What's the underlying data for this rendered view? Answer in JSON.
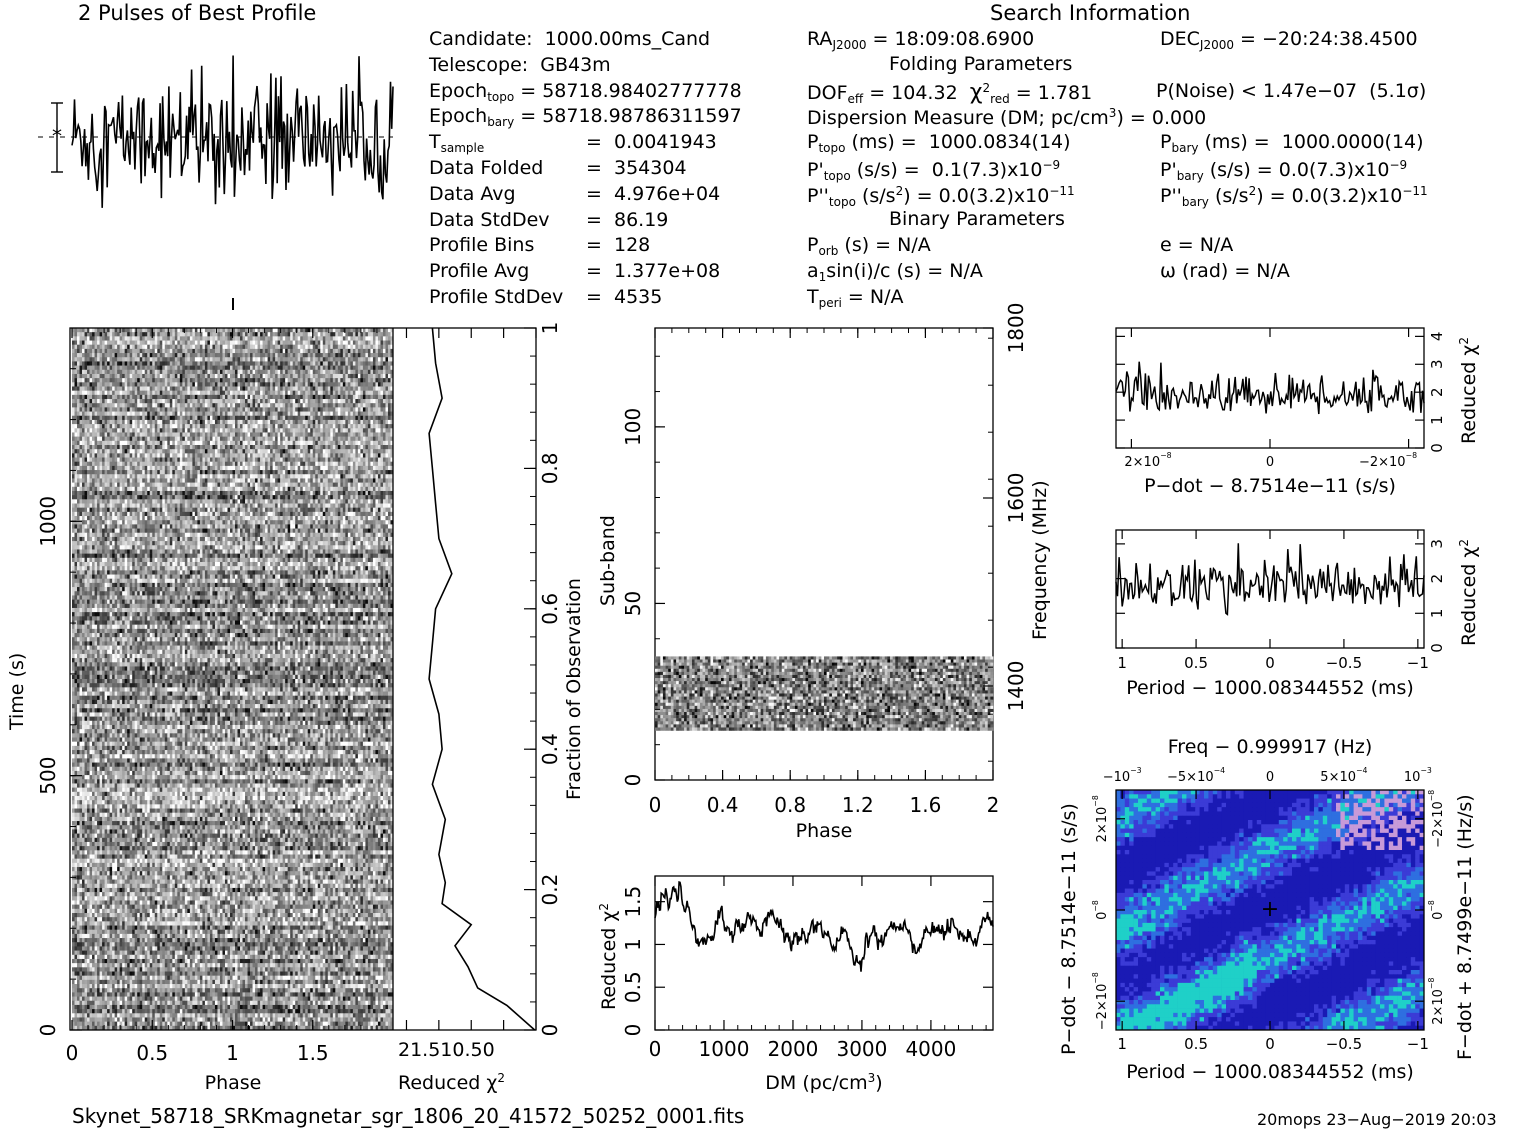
{
  "header": {
    "profile_title": "2 Pulses of Best Profile",
    "search_title": "Search Information",
    "folding_title": "Folding Parameters",
    "binary_title": "Binary Parameters"
  },
  "info": {
    "candidate": "Candidate:  1000.00ms_Cand",
    "telescope": "Telescope:  GB43m",
    "epoch_topo_label": "Epoch",
    "epoch_topo_sub": "topo",
    "epoch_topo_val": " = 58718.98402777778",
    "epoch_bary_label": "Epoch",
    "epoch_bary_sub": "bary",
    "epoch_bary_val": " = 58718.98786311597",
    "tsample_label": "T",
    "tsample_sub": "sample",
    "tsample_val": "=  0.0041943",
    "data_folded_label": "Data Folded",
    "data_folded_val": "=  354304",
    "data_avg_label": "Data Avg",
    "data_avg_val": "=  4.976e+04",
    "data_std_label": "Data StdDev",
    "data_std_val": "=  86.19",
    "prof_bins_label": "Profile Bins",
    "prof_bins_val": "=  128",
    "prof_avg_label": "Profile Avg",
    "prof_avg_val": "=  1.377e+08",
    "prof_std_label": "Profile StdDev",
    "prof_std_val": "=  4535"
  },
  "search": {
    "ra_label": "RA",
    "ra_sub": "J2000",
    "ra_val": " = 18:09:08.6900",
    "dec_label": "DEC",
    "dec_sub": "J2000",
    "dec_val": " = −20:24:38.4500",
    "dof_label": "DOF",
    "dof_sub": "eff",
    "dof_val": " = 104.32  ",
    "chi_sym": "χ",
    "chi_sup": "2",
    "chi_sub": "red",
    "chi_val": " = 1.781",
    "pnoise": "P(Noise) < 1.47e−07  (5.1σ)",
    "dm_line": "Dispersion Measure (DM; pc/cm",
    "dm_sup": "3",
    "dm_val": ") = 0.000",
    "ptopo_label": "P",
    "ptopo_sub": "topo",
    "ptopo_val": " (ms) =  1000.0834(14)",
    "pbary_label": "P",
    "pbary_sub": "bary",
    "pbary_val": " (ms) =  1000.0000(14)",
    "pdtopo_label": "P'",
    "pdtopo_sub": "topo",
    "pdtopo_val": " (s/s) =  0.1(7.3)x10",
    "pdtopo_exp": "−9",
    "pdbary_label": "P'",
    "pdbary_sub": "bary",
    "pdbary_val": " (s/s) = 0.0(7.3)x10",
    "pdbary_exp": "−9",
    "pddtopo_label": "P''",
    "pddtopo_sub": "topo",
    "pddtopo_val": " (s/s",
    "pddtopo_sup": "2",
    "pddtopo_val2": ") = 0.0(3.2)x10",
    "pddtopo_exp": "−11",
    "pddbary_label": "P''",
    "pddbary_sub": "bary",
    "pddbary_val": " (s/s",
    "pddbary_sup": "2",
    "pddbary_val2": ") = 0.0(3.2)x10",
    "pddbary_exp": "−11",
    "porb_label": "P",
    "porb_sub": "orb",
    "porb_val": " (s) = N/A",
    "e_line": "e = N/A",
    "a1_label": "a",
    "a1_sub": "1",
    "a1_val": "sin(i)/c (s) = N/A",
    "omega_line": "ω (rad) = N/A",
    "tperi_label": "T",
    "tperi_sub": "peri",
    "tperi_val": " = N/A"
  },
  "footer": {
    "filename": "Skynet_58718_SRKmagnetar_sgr_1806_20_41572_50252_0001.fits",
    "stamp": "20mops 23−Aug−2019 20:03"
  },
  "chart_data": [
    {
      "type": "line",
      "title": "2 Pulses of Best Profile",
      "x_range": [
        0,
        2
      ],
      "description_values": "noisy profile, no clear pulse",
      "series": [
        {
          "samples": 256
        }
      ]
    },
    {
      "type": "heatmap",
      "xlabel": "Phase",
      "ylabel": "Time (s)",
      "xlim": [
        0,
        2
      ],
      "ylim": [
        0,
        1380
      ],
      "x_ticks": [
        "0",
        "0.5",
        "1",
        "1.5"
      ],
      "y_ticks": [
        "0",
        "500",
        "1000"
      ]
    },
    {
      "type": "line",
      "xlabel": "Reduced χ",
      "xlabel_sup": "2",
      "ylabel": "Fraction of Observation",
      "x_ticks": [
        "2",
        "1.5",
        "1",
        "0.5",
        "0"
      ],
      "x_tick_label_joined": "21.510.50",
      "y_ticks": [
        "0",
        "0.2",
        "0.4",
        "0.6",
        "0.8",
        "1"
      ],
      "x": [
        0.035,
        0.06,
        0.09,
        0.12,
        0.15,
        0.18,
        0.21,
        0.25,
        0.3,
        0.35,
        0.4,
        0.45,
        0.5,
        0.55,
        0.6,
        0.65,
        0.7,
        0.75,
        0.8,
        0.85,
        0.9,
        0.95,
        1.0
      ],
      "y": [
        0.45,
        0.9,
        1.05,
        1.25,
        1.0,
        1.45,
        1.4,
        1.5,
        1.4,
        1.6,
        1.45,
        1.5,
        1.65,
        1.6,
        1.55,
        1.3,
        1.5,
        1.55,
        1.6,
        1.65,
        1.45,
        1.55,
        1.6
      ]
    },
    {
      "type": "heatmap",
      "xlabel": "Phase",
      "ylabel": "Sub-band",
      "y2label": "Frequency (MHz)",
      "xlim": [
        0,
        2
      ],
      "ylim": [
        0,
        128
      ],
      "x_ticks": [
        "0",
        "0.4",
        "0.8",
        "1.2",
        "1.6",
        "2"
      ],
      "y_ticks": [
        "0",
        "50",
        "100"
      ],
      "y2_ticks": [
        "1400",
        "1600",
        "1800"
      ],
      "band_rows": [
        14,
        35
      ]
    },
    {
      "type": "line",
      "xlabel": "DM (pc/cm",
      "xlabel_sup": "3",
      "xlabel_end": ")",
      "ylabel": "Reduced χ",
      "ylabel_sup": "2",
      "xlim": [
        0,
        4900
      ],
      "ylim": [
        0,
        1.8
      ],
      "x_ticks": [
        "0",
        "1000",
        "2000",
        "3000",
        "4000"
      ],
      "y_ticks": [
        "0",
        "0.5",
        "1",
        "1.5"
      ],
      "mean_level": 1.15
    },
    {
      "type": "line",
      "xlabel": "P−dot − 8.7514e−11 (s/s)",
      "ylabel": "Reduced χ",
      "ylabel_sup": "2",
      "x_ticks": [
        "2×10",
        "0",
        "−2×10"
      ],
      "x_tick_exp": "−8",
      "y_ticks": [
        "0",
        "1",
        "2",
        "3",
        "4"
      ],
      "mean_level": 1.9
    },
    {
      "type": "line",
      "xlabel": "Period − 1000.08344552 (ms)",
      "ylabel": "Reduced χ",
      "ylabel_sup": "2",
      "x_ticks": [
        "1",
        "0.5",
        "0",
        "−0.5",
        "−1"
      ],
      "y_ticks": [
        "0",
        "1",
        "2",
        "3"
      ],
      "mean_level": 1.8
    },
    {
      "type": "heatmap",
      "title": "Freq − 0.999917 (Hz)",
      "xlabel": "Period − 1000.08344552 (ms)",
      "ylabel": "P−dot − 8.7514e−11 (s/s)",
      "y2label": "F−dot + 8.7499e−11 (Hz/s)",
      "x_ticks": [
        "1",
        "0.5",
        "0",
        "−0.5",
        "−1"
      ],
      "top_ticks": [
        "−10",
        "−5×10",
        "0",
        "5×10",
        "10"
      ],
      "top_ticks_exp": [
        "−3",
        "−4",
        "",
        "−4",
        "−3"
      ],
      "y_ticks": [
        "2×10",
        "0",
        "−2×10"
      ],
      "y_tick_exp": "−8",
      "y2_ticks": [
        "−2×10",
        "0",
        "2×10"
      ],
      "y2_tick_exp": "−8",
      "colors": [
        "#1a1ab4",
        "#3b3bd6",
        "#2e6fe0",
        "#1fd0c8",
        "#c79ad8"
      ]
    }
  ]
}
